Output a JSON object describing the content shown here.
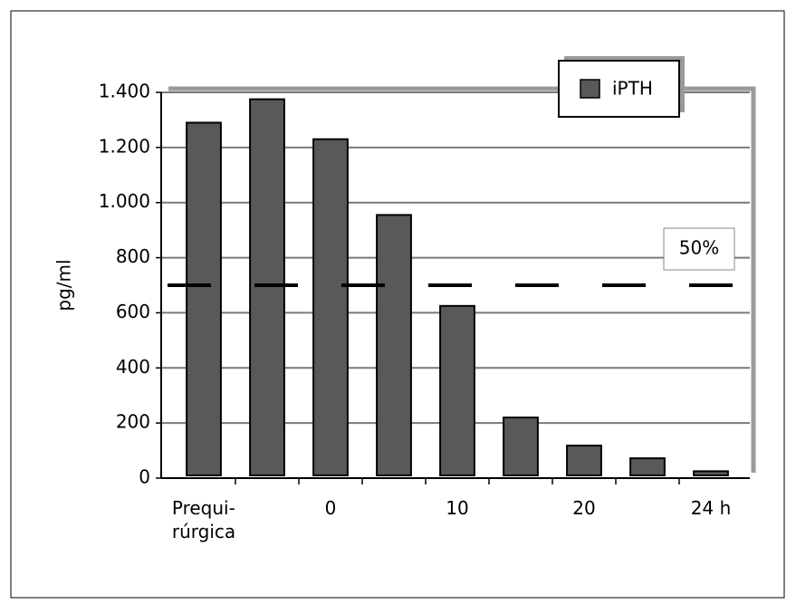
{
  "chart_data": {
    "type": "bar",
    "y_label": "pg/ml",
    "categories": [
      "Prequi-\nrúrgica",
      null,
      "0",
      null,
      "10",
      null,
      "20",
      null,
      "24 h"
    ],
    "series": [
      {
        "name": "iPTH",
        "color": "#595959",
        "values": [
          1290,
          1375,
          1230,
          955,
          625,
          220,
          118,
          72,
          25
        ]
      }
    ],
    "ylim": [
      0,
      1400
    ],
    "yticks": [
      0,
      200,
      400,
      600,
      800,
      {
        "value": 1000,
        "label": "1.000"
      },
      {
        "value": 1200,
        "label": "1.200"
      },
      {
        "value": 1400,
        "label": "1.400"
      }
    ],
    "grid": true,
    "reference_line": {
      "value": 700,
      "label": "50%"
    },
    "legend": "top-right"
  }
}
